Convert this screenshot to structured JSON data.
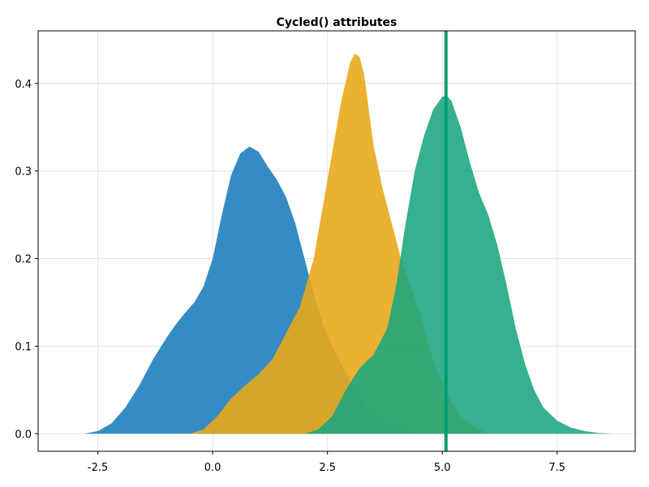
{
  "chart_data": {
    "type": "area",
    "title": "Cycled() attributes",
    "xlabel": "",
    "ylabel": "",
    "xlim": [
      -3.8,
      9.2
    ],
    "ylim": [
      -0.02,
      0.46
    ],
    "grid": true,
    "x_ticks": [
      -2.5,
      0.0,
      2.5,
      5.0,
      7.5
    ],
    "x_tick_labels": [
      "-2.5",
      "0.0",
      "2.5",
      "5.0",
      "7.5"
    ],
    "y_ticks": [
      0.0,
      0.1,
      0.2,
      0.3,
      0.4
    ],
    "y_tick_labels": [
      "0.0",
      "0.1",
      "0.2",
      "0.3",
      "0.4"
    ],
    "series": [
      {
        "color": "#2a86c1",
        "opacity": 0.95,
        "x": [
          -2.8,
          -2.5,
          -2.2,
          -1.9,
          -1.6,
          -1.3,
          -1.0,
          -0.8,
          -0.6,
          -0.4,
          -0.2,
          0.0,
          0.2,
          0.4,
          0.6,
          0.8,
          1.0,
          1.2,
          1.4,
          1.6,
          1.8,
          2.0,
          2.2,
          2.4,
          2.6,
          2.8,
          3.0,
          3.2,
          3.4,
          3.6,
          3.8,
          4.0,
          4.3,
          4.6,
          5.0
        ],
        "y": [
          0.0,
          0.003,
          0.012,
          0.03,
          0.055,
          0.085,
          0.11,
          0.125,
          0.138,
          0.15,
          0.168,
          0.2,
          0.25,
          0.295,
          0.32,
          0.328,
          0.322,
          0.305,
          0.29,
          0.27,
          0.24,
          0.2,
          0.16,
          0.125,
          0.1,
          0.08,
          0.06,
          0.04,
          0.025,
          0.015,
          0.008,
          0.004,
          0.002,
          0.001,
          0.0
        ]
      },
      {
        "color": "#e8a81c",
        "opacity": 0.9,
        "x": [
          -0.5,
          -0.2,
          0.1,
          0.4,
          0.7,
          1.0,
          1.3,
          1.6,
          1.9,
          2.2,
          2.4,
          2.6,
          2.8,
          3.0,
          3.1,
          3.2,
          3.3,
          3.5,
          3.7,
          3.9,
          4.1,
          4.3,
          4.5,
          4.7,
          4.9,
          5.1,
          5.4,
          5.7,
          6.0
        ],
        "y": [
          0.0,
          0.005,
          0.02,
          0.04,
          0.055,
          0.068,
          0.085,
          0.115,
          0.145,
          0.2,
          0.26,
          0.32,
          0.38,
          0.425,
          0.434,
          0.43,
          0.41,
          0.33,
          0.28,
          0.24,
          0.2,
          0.17,
          0.14,
          0.1,
          0.07,
          0.045,
          0.02,
          0.008,
          0.0
        ]
      },
      {
        "color": "#1aa57e",
        "opacity": 0.88,
        "x": [
          2.0,
          2.3,
          2.6,
          2.9,
          3.2,
          3.5,
          3.8,
          4.0,
          4.2,
          4.4,
          4.6,
          4.8,
          5.0,
          5.1,
          5.2,
          5.4,
          5.6,
          5.8,
          6.0,
          6.2,
          6.4,
          6.6,
          6.8,
          7.0,
          7.2,
          7.5,
          7.8,
          8.1,
          8.4,
          8.7
        ],
        "y": [
          0.0,
          0.005,
          0.02,
          0.05,
          0.075,
          0.09,
          0.12,
          0.17,
          0.24,
          0.3,
          0.34,
          0.37,
          0.385,
          0.386,
          0.38,
          0.35,
          0.31,
          0.275,
          0.25,
          0.215,
          0.17,
          0.12,
          0.08,
          0.05,
          0.03,
          0.015,
          0.007,
          0.003,
          0.001,
          0.0
        ]
      }
    ],
    "vline": {
      "x": 5.08,
      "color": "#009e73"
    }
  }
}
